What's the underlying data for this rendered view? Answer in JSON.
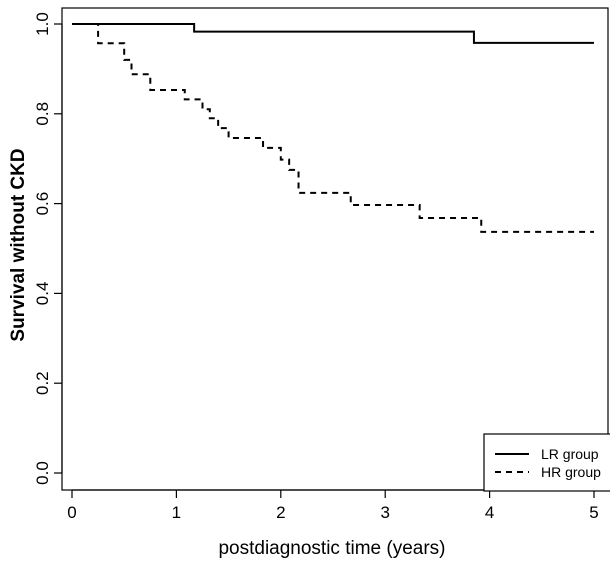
{
  "chart_data": {
    "type": "line",
    "subtype": "step",
    "xlabel": "postdiagnostic time (years)",
    "ylabel": "Survival without CKD",
    "xlim": [
      0,
      5
    ],
    "ylim": [
      0.0,
      1.0
    ],
    "x_ticks": [
      "0",
      "1",
      "2",
      "3",
      "4",
      "5"
    ],
    "y_ticks": [
      "0.0",
      "0.2",
      "0.4",
      "0.6",
      "0.8",
      "1.0"
    ],
    "grid": false,
    "legend_position": "bottom-right",
    "series": [
      {
        "name": "LR group",
        "line_style": "solid",
        "color": "#000000",
        "steps": [
          {
            "x": 0,
            "y": 1.0
          },
          {
            "x": 1.17,
            "y": 0.983
          },
          {
            "x": 3.85,
            "y": 0.958
          },
          {
            "x": 5.0,
            "y": 0.958
          }
        ]
      },
      {
        "name": "HR group",
        "line_style": "dashed",
        "color": "#000000",
        "steps": [
          {
            "x": 0,
            "y": 1.0
          },
          {
            "x": 0.25,
            "y": 0.957
          },
          {
            "x": 0.5,
            "y": 0.92
          },
          {
            "x": 0.57,
            "y": 0.888
          },
          {
            "x": 0.75,
            "y": 0.853
          },
          {
            "x": 1.08,
            "y": 0.832
          },
          {
            "x": 1.25,
            "y": 0.81
          },
          {
            "x": 1.32,
            "y": 0.79
          },
          {
            "x": 1.4,
            "y": 0.768
          },
          {
            "x": 1.5,
            "y": 0.746
          },
          {
            "x": 1.83,
            "y": 0.724
          },
          {
            "x": 2.0,
            "y": 0.698
          },
          {
            "x": 2.08,
            "y": 0.675
          },
          {
            "x": 2.17,
            "y": 0.624
          },
          {
            "x": 2.67,
            "y": 0.597
          },
          {
            "x": 3.33,
            "y": 0.568
          },
          {
            "x": 3.92,
            "y": 0.537
          },
          {
            "x": 5.0,
            "y": 0.537
          }
        ]
      }
    ]
  }
}
